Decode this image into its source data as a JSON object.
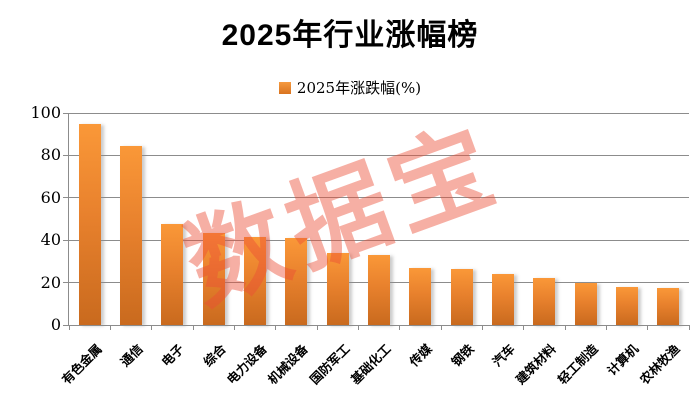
{
  "chart_data": {
    "type": "bar",
    "title": "2025年行业涨幅榜",
    "legend": "2025年涨跌幅(%)",
    "watermark": "数据宝",
    "categories": [
      "有色金属",
      "通信",
      "电子",
      "综合",
      "电力设备",
      "机械设备",
      "国防军工",
      "基础化工",
      "传媒",
      "钢铁",
      "汽车",
      "建筑材料",
      "轻工制造",
      "计算机",
      "农林牧渔"
    ],
    "values": [
      95,
      84.5,
      47.7,
      43.5,
      41.5,
      41,
      34,
      33,
      27,
      26.3,
      24,
      22,
      20,
      18,
      17.4
    ],
    "xlabel": "",
    "ylabel": "",
    "ylim": [
      0,
      100
    ],
    "yticks": [
      0,
      20,
      40,
      60,
      80,
      100
    ],
    "grid": true,
    "legend_position": "top-center",
    "colors": {
      "bar_top": "#FA9838",
      "bar_bottom": "#C96A1E",
      "axis_gray": "#8C8C8C",
      "watermark_red": "rgba(236,78,53,0.45)",
      "text_black": "#000000"
    }
  }
}
